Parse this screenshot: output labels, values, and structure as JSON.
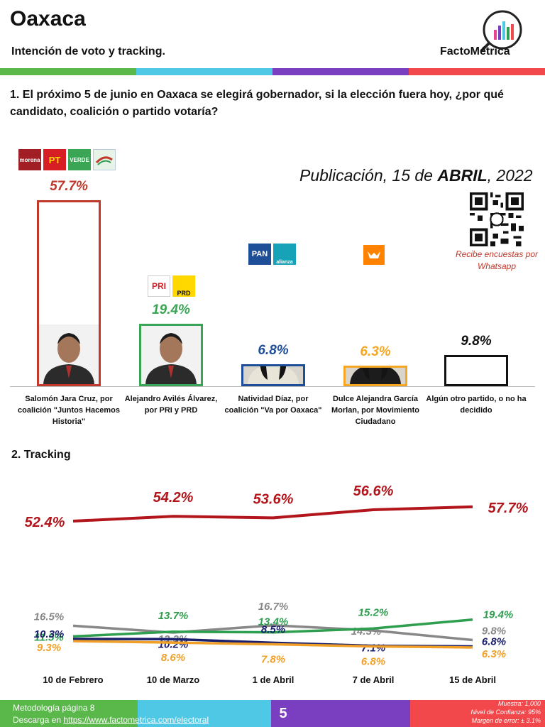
{
  "header": {
    "title": "Oaxaca",
    "subtitle": "Intención de voto y tracking.",
    "brand": "FactoMétrica",
    "stripe_colors": [
      "#5ab84a",
      "#4fc8e6",
      "#7a3fc0",
      "#f2484b"
    ]
  },
  "question": "1. El próximo 5 de junio en Oaxaca se elegirá gobernador, si la elección fuera hoy, ¿por qué candidato, coalición o partido votaría?",
  "publication": {
    "prefix": "Publicación, 15 de ",
    "month": "ABRIL",
    "suffix": ", 2022"
  },
  "qr_caption": "Recibe encuestas por Whatsapp",
  "parties": {
    "morena": "morena",
    "pt": "PT",
    "verde": "VERDE",
    "pri": "PRI",
    "prd": "PRD",
    "pan": "PAN",
    "alianza": "alianza"
  },
  "tracking_title": "2. Tracking",
  "chart_data": [
    {
      "type": "bar",
      "categories": [
        "Salomón Jara Cruz, por coalición \"Juntos Hacemos Historia\"",
        "Alejandro Avilés Álvarez, por PRI y PRD",
        "Natividad Díaz, por coalición \"Va por Oaxaca\"",
        "Dulce Alejandra García Morlan, por Movimiento Ciudadano",
        "Algún otro partido, o no ha decidido"
      ],
      "values": [
        57.7,
        19.4,
        6.8,
        6.3,
        9.8
      ],
      "labels": [
        "57.7%",
        "19.4%",
        "6.8%",
        "6.3%",
        "9.8%"
      ],
      "colors": [
        "#c0392b",
        "#3aa655",
        "#1f4e99",
        "#f5a623",
        "#111111"
      ],
      "ylim": [
        0,
        57.7
      ]
    },
    {
      "type": "line",
      "x": [
        "10 de Febrero",
        "10 de Marzo",
        "1 de Abril",
        "7 de Abril",
        "15 de Abril"
      ],
      "ylim": [
        5,
        60
      ],
      "series": [
        {
          "values": [
            52.4,
            54.2,
            53.6,
            56.6,
            57.7
          ],
          "labels": [
            "52.4%",
            "54.2%",
            "53.6%",
            "56.6%",
            "57.7%"
          ],
          "color": "#b3151c"
        },
        {
          "values": [
            16.5,
            13.3,
            16.7,
            14.3,
            9.8
          ],
          "labels": [
            "16.5%",
            "13.3%",
            "16.7%",
            "14.3%",
            "9.8%"
          ],
          "color": "#888888"
        },
        {
          "values": [
            11.5,
            13.7,
            13.4,
            15.2,
            19.4
          ],
          "labels": [
            "11.5%",
            "13.7%",
            "13.4%",
            "15.2%",
            "19.4%"
          ],
          "color": "#2e9e4f"
        },
        {
          "values": [
            10.3,
            10.2,
            8.5,
            7.1,
            6.8
          ],
          "labels": [
            "10.3%",
            "10.2%",
            "8.5%",
            "7.1%",
            "6.8%"
          ],
          "color": "#1a1f6b"
        },
        {
          "values": [
            9.3,
            8.6,
            7.8,
            6.8,
            6.3
          ],
          "labels": [
            "9.3%",
            "8.6%",
            "7.8%",
            "6.8%",
            "6.3%"
          ],
          "color": "#f0a028"
        }
      ]
    }
  ],
  "footer": {
    "methodology": "Metodología página 8",
    "download_prefix": "Descarga en ",
    "download_link": "https://www.factometrica.com/electoral",
    "page": "5",
    "sample": "Muestra: 1,000",
    "confidence": "Nivel de Confianza: 95%",
    "margin": "Margen de error: ± 3.1%"
  }
}
